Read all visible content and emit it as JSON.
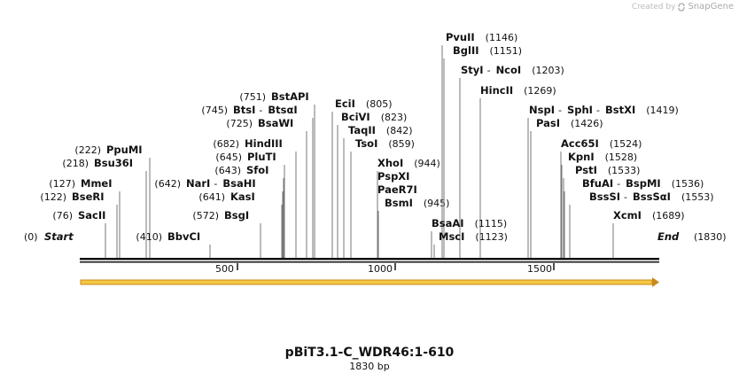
{
  "brand": {
    "created_by": "Created by",
    "name": "SnapGene"
  },
  "map": {
    "title": "pBiT3.1-C_WDR46:1-610",
    "length_label": "1830 bp",
    "length_bp": 1830,
    "start_label": "Start",
    "start_pos": "(0)",
    "end_label": "End",
    "end_pos": "(1830)",
    "ticks": [
      "500",
      "1000",
      "1500"
    ],
    "tick_values": [
      500,
      1000,
      1500
    ],
    "feature_color": "#f5c842",
    "feature_border": "#c98a1a"
  },
  "enzymes": [
    {
      "id": "sacii",
      "parts": [
        "SacII"
      ],
      "pos": "(76)",
      "bp": 76,
      "side": "left"
    },
    {
      "id": "bseri",
      "parts": [
        "BseRI"
      ],
      "pos": "(122)",
      "bp": 122,
      "side": "left"
    },
    {
      "id": "mmei",
      "parts": [
        "MmeI"
      ],
      "pos": "(127)",
      "bp": 127,
      "side": "left"
    },
    {
      "id": "bsu36i",
      "parts": [
        "Bsu36I"
      ],
      "pos": "(218)",
      "bp": 218,
      "side": "left"
    },
    {
      "id": "ppumi",
      "parts": [
        "PpuMI"
      ],
      "pos": "(222)",
      "bp": 222,
      "side": "left"
    },
    {
      "id": "bbvci",
      "parts": [
        "BbvCI"
      ],
      "pos": "(410)",
      "bp": 410,
      "side": "left"
    },
    {
      "id": "bsgi",
      "parts": [
        "BsgI"
      ],
      "pos": "(572)",
      "bp": 572,
      "side": "left"
    },
    {
      "id": "kasi",
      "parts": [
        "KasI"
      ],
      "pos": "(641)",
      "bp": 641,
      "side": "left"
    },
    {
      "id": "nari",
      "parts": [
        "NarI",
        "BsaHI"
      ],
      "pos": "(642)",
      "bp": 642,
      "side": "left"
    },
    {
      "id": "sfoi",
      "parts": [
        "SfoI"
      ],
      "pos": "(643)",
      "bp": 643,
      "side": "left"
    },
    {
      "id": "plutl",
      "parts": [
        "PluTI"
      ],
      "pos": "(645)",
      "bp": 645,
      "side": "left"
    },
    {
      "id": "hindiii",
      "parts": [
        "HindIII"
      ],
      "pos": "(682)",
      "bp": 682,
      "side": "left"
    },
    {
      "id": "bsawi",
      "parts": [
        "BsaWI"
      ],
      "pos": "(725)",
      "bp": 725,
      "side": "left"
    },
    {
      "id": "btsi",
      "parts": [
        "BtsI",
        "BtsαI"
      ],
      "pos": "(745)",
      "bp": 745,
      "side": "left"
    },
    {
      "id": "bstapi",
      "parts": [
        "BstAPI"
      ],
      "pos": "(751)",
      "bp": 751,
      "side": "left"
    },
    {
      "id": "ecii",
      "parts": [
        "EciI"
      ],
      "pos": "(805)",
      "bp": 805,
      "side": "right"
    },
    {
      "id": "bcivi",
      "parts": [
        "BciVI"
      ],
      "pos": "(823)",
      "bp": 823,
      "side": "right"
    },
    {
      "id": "taqii",
      "parts": [
        "TaqII"
      ],
      "pos": "(842)",
      "bp": 842,
      "side": "right"
    },
    {
      "id": "tsoi",
      "parts": [
        "TsoI"
      ],
      "pos": "(859)",
      "bp": 859,
      "side": "right"
    },
    {
      "id": "xhoi",
      "parts": [
        "XhoI"
      ],
      "pos": "(944)",
      "bp": 944,
      "side": "right"
    },
    {
      "id": "pspxi",
      "parts": [
        "PspXI"
      ],
      "pos": "",
      "bp": 944,
      "side": "right"
    },
    {
      "id": "paer7i",
      "parts": [
        "PaeR7I"
      ],
      "pos": "",
      "bp": 944,
      "side": "right"
    },
    {
      "id": "bsmi",
      "parts": [
        "BsmI"
      ],
      "pos": "(945)",
      "bp": 945,
      "side": "right"
    },
    {
      "id": "pvuii",
      "parts": [
        "PvuII"
      ],
      "pos": "(1146)",
      "bp": 1146,
      "side": "right"
    },
    {
      "id": "bglii",
      "parts": [
        "BglII"
      ],
      "pos": "(1151)",
      "bp": 1151,
      "side": "right"
    },
    {
      "id": "styi",
      "parts": [
        "StyI",
        "NcoI"
      ],
      "pos": "(1203)",
      "bp": 1203,
      "side": "right"
    },
    {
      "id": "hincii",
      "parts": [
        "HincII"
      ],
      "pos": "(1269)",
      "bp": 1269,
      "side": "right"
    },
    {
      "id": "bsaai",
      "parts": [
        "BsaAI"
      ],
      "pos": "(1115)",
      "bp": 1115,
      "side": "right"
    },
    {
      "id": "msci",
      "parts": [
        "MscI"
      ],
      "pos": "(1123)",
      "bp": 1123,
      "side": "right"
    },
    {
      "id": "nspi",
      "parts": [
        "NspI",
        "SphI",
        "BstXI"
      ],
      "pos": "(1419)",
      "bp": 1419,
      "side": "right"
    },
    {
      "id": "pasi",
      "parts": [
        "PasI"
      ],
      "pos": "(1426)",
      "bp": 1426,
      "side": "right"
    },
    {
      "id": "acc65i",
      "parts": [
        "Acc65I"
      ],
      "pos": "(1524)",
      "bp": 1524,
      "side": "right"
    },
    {
      "id": "kpni",
      "parts": [
        "KpnI"
      ],
      "pos": "(1528)",
      "bp": 1528,
      "side": "right"
    },
    {
      "id": "psti",
      "parts": [
        "PstI"
      ],
      "pos": "(1533)",
      "bp": 1533,
      "side": "right"
    },
    {
      "id": "bfuai",
      "parts": [
        "BfuAI",
        "BspMI"
      ],
      "pos": "(1536)",
      "bp": 1536,
      "side": "right"
    },
    {
      "id": "bsssi",
      "parts": [
        "BssSI",
        "BssSαI"
      ],
      "pos": "(1553)",
      "bp": 1553,
      "side": "right"
    },
    {
      "id": "xcmi",
      "parts": [
        "XcmI"
      ],
      "pos": "(1689)",
      "bp": 1689,
      "side": "right"
    }
  ]
}
